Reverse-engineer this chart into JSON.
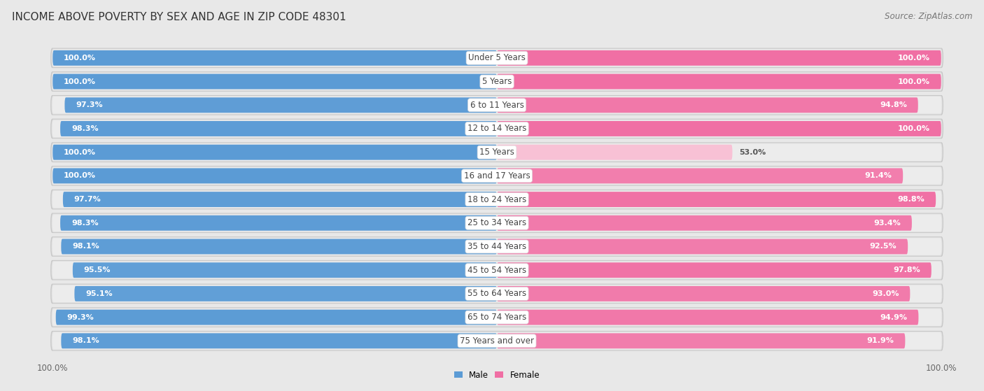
{
  "title": "INCOME ABOVE POVERTY BY SEX AND AGE IN ZIP CODE 48301",
  "source": "Source: ZipAtlas.com",
  "categories": [
    "Under 5 Years",
    "5 Years",
    "6 to 11 Years",
    "12 to 14 Years",
    "15 Years",
    "16 and 17 Years",
    "18 to 24 Years",
    "25 to 34 Years",
    "35 to 44 Years",
    "45 to 54 Years",
    "55 to 64 Years",
    "65 to 74 Years",
    "75 Years and over"
  ],
  "male_values": [
    100.0,
    100.0,
    97.3,
    98.3,
    100.0,
    100.0,
    97.7,
    98.3,
    98.1,
    95.5,
    95.1,
    99.3,
    98.1
  ],
  "female_values": [
    100.0,
    100.0,
    94.8,
    100.0,
    53.0,
    91.4,
    98.8,
    93.4,
    92.5,
    97.8,
    93.0,
    94.9,
    91.9
  ],
  "male_color_high": "#5b9bd5",
  "male_color_low": "#9dc3e6",
  "female_color_high": "#f06fa4",
  "female_color_low": "#f4a7c3",
  "male_label": "Male",
  "female_label": "Female",
  "background_color": "#e8e8e8",
  "row_bg_color": "#d8d8d8",
  "bar_inner_bg": "#f5f5f5",
  "label_pill_color": "#ffffff",
  "title_fontsize": 11,
  "label_fontsize": 8.5,
  "value_fontsize": 8,
  "source_fontsize": 8.5,
  "bar_height": 0.65,
  "x_max": 100.0
}
